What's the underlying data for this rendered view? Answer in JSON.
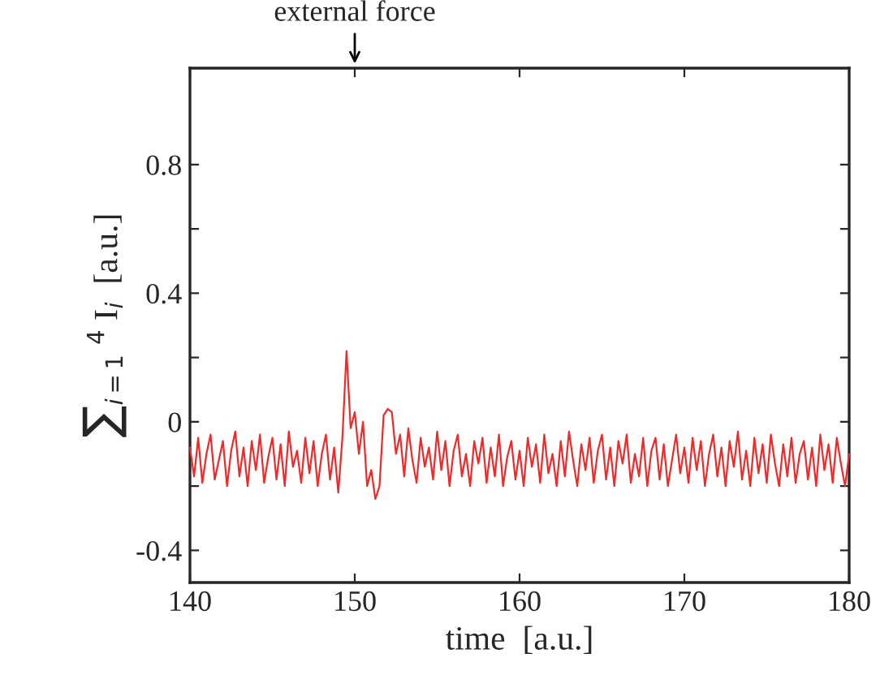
{
  "chart_data": {
    "type": "line",
    "xlabel": "time  [a.u.]",
    "ylabel": "∑$_{i=1}$ $^{4}$ I$_{i}$  [a.u.]",
    "annotations": [
      "external force"
    ],
    "xlim": [
      140,
      180
    ],
    "xticks": [
      140,
      150,
      160,
      170,
      180
    ],
    "ylim": [
      -0.5,
      1.1
    ],
    "yticks": [
      {
        "value": -0.4,
        "label": "-0.4"
      },
      {
        "value": -0.2,
        "label": null
      },
      0,
      {
        "value": 0.2,
        "label": null
      },
      0.4,
      {
        "value": 0.6,
        "label": null
      },
      0.8
    ],
    "grid": false,
    "legend": false,
    "marker": "none",
    "line_style": "solid",
    "series": [
      {
        "color": "#ee2a2a",
        "x": [
          140,
          140.25,
          140.5,
          140.75,
          141,
          141.25,
          141.5,
          141.75,
          142,
          142.25,
          142.5,
          142.75,
          143,
          143.25,
          143.5,
          143.75,
          144,
          144.25,
          144.5,
          144.75,
          145,
          145.25,
          145.5,
          145.75,
          146,
          146.25,
          146.5,
          146.75,
          147,
          147.25,
          147.5,
          147.75,
          148,
          148.25,
          148.5,
          148.75,
          149,
          149.25,
          149.5,
          149.75,
          150,
          150.25,
          150.5,
          150.75,
          151,
          151.25,
          151.5,
          151.75,
          152,
          152.25,
          152.5,
          152.75,
          153,
          153.25,
          153.5,
          153.75,
          154,
          154.25,
          154.5,
          154.75,
          155,
          155.25,
          155.5,
          155.75,
          156,
          156.25,
          156.5,
          156.75,
          157,
          157.25,
          157.5,
          157.75,
          158,
          158.25,
          158.5,
          158.75,
          159,
          159.25,
          159.5,
          159.75,
          160,
          160.25,
          160.5,
          160.75,
          161,
          161.25,
          161.5,
          161.75,
          162,
          162.25,
          162.5,
          162.75,
          163,
          163.25,
          163.5,
          163.75,
          164,
          164.25,
          164.5,
          164.75,
          165,
          165.25,
          165.5,
          165.75,
          166,
          166.25,
          166.5,
          166.75,
          167,
          167.25,
          167.5,
          167.75,
          168,
          168.25,
          168.5,
          168.75,
          169,
          169.25,
          169.5,
          169.75,
          170,
          170.25,
          170.5,
          170.75,
          171,
          171.25,
          171.5,
          171.75,
          172,
          172.25,
          172.5,
          172.75,
          173,
          173.25,
          173.5,
          173.75,
          174,
          174.25,
          174.5,
          174.75,
          175,
          175.25,
          175.5,
          175.75,
          176,
          176.25,
          176.5,
          176.75,
          177,
          177.25,
          177.5,
          177.75,
          178,
          178.25,
          178.5,
          178.75,
          179,
          179.25,
          179.5,
          179.75,
          180
        ],
        "values": [
          -0.08,
          -0.17,
          -0.05,
          -0.19,
          -0.1,
          -0.04,
          -0.18,
          -0.12,
          -0.06,
          -0.2,
          -0.09,
          -0.03,
          -0.17,
          -0.08,
          -0.2,
          -0.06,
          -0.15,
          -0.04,
          -0.19,
          -0.11,
          -0.05,
          -0.18,
          -0.07,
          -0.2,
          -0.03,
          -0.14,
          -0.09,
          -0.19,
          -0.05,
          -0.16,
          -0.06,
          -0.2,
          -0.1,
          -0.04,
          -0.18,
          -0.08,
          -0.22,
          -0.05,
          0.22,
          -0.02,
          0.03,
          -0.1,
          0.0,
          -0.2,
          -0.15,
          -0.24,
          -0.2,
          0.02,
          0.04,
          0.03,
          -0.1,
          -0.04,
          -0.17,
          -0.02,
          -0.12,
          -0.19,
          -0.05,
          -0.14,
          -0.08,
          -0.18,
          -0.03,
          -0.15,
          -0.06,
          -0.2,
          -0.09,
          -0.04,
          -0.17,
          -0.1,
          -0.2,
          -0.06,
          -0.13,
          -0.05,
          -0.19,
          -0.08,
          -0.17,
          -0.04,
          -0.2,
          -0.11,
          -0.06,
          -0.18,
          -0.09,
          -0.2,
          -0.05,
          -0.14,
          -0.07,
          -0.19,
          -0.04,
          -0.16,
          -0.1,
          -0.2,
          -0.06,
          -0.17,
          -0.03,
          -0.12,
          -0.2,
          -0.07,
          -0.15,
          -0.05,
          -0.19,
          -0.09,
          -0.04,
          -0.18,
          -0.08,
          -0.2,
          -0.06,
          -0.13,
          -0.04,
          -0.19,
          -0.1,
          -0.17,
          -0.05,
          -0.2,
          -0.09,
          -0.05,
          -0.18,
          -0.07,
          -0.2,
          -0.12,
          -0.04,
          -0.16,
          -0.08,
          -0.19,
          -0.05,
          -0.15,
          -0.06,
          -0.2,
          -0.1,
          -0.04,
          -0.17,
          -0.08,
          -0.2,
          -0.06,
          -0.14,
          -0.03,
          -0.18,
          -0.09,
          -0.2,
          -0.05,
          -0.16,
          -0.07,
          -0.19,
          -0.04,
          -0.13,
          -0.2,
          -0.07,
          -0.17,
          -0.05,
          -0.19,
          -0.1,
          -0.06,
          -0.18,
          -0.08,
          -0.2,
          -0.04,
          -0.15,
          -0.07,
          -0.19,
          -0.05,
          -0.13,
          -0.2,
          -0.1
        ]
      }
    ]
  }
}
